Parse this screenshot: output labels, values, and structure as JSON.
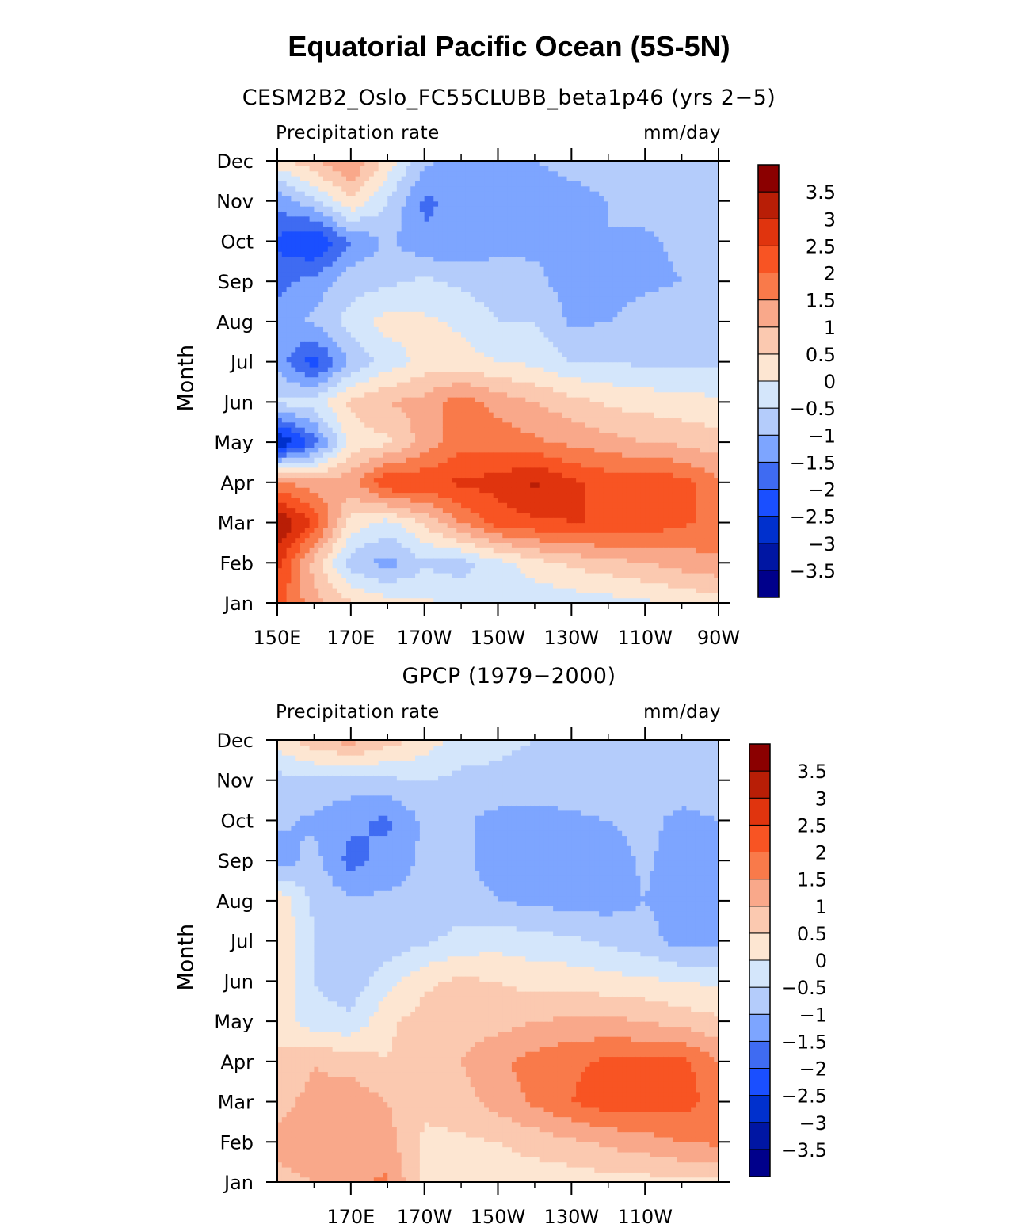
{
  "title": "Equatorial Pacific Ocean (5S-5N)",
  "colorbar": {
    "colors": [
      "#00008b",
      "#0016a3",
      "#0030cd",
      "#1a4fff",
      "#3f6bf2",
      "#7da5ff",
      "#b4ccfb",
      "#d4e6fb",
      "#fde6d2",
      "#fbc9b0",
      "#f9a88a",
      "#f97a4a",
      "#f85423",
      "#e0340e",
      "#b81e06",
      "#8b0000"
    ],
    "labels": [
      "3.5",
      "3",
      "2.5",
      "2",
      "1.5",
      "1",
      "0.5",
      "0",
      "−0.5",
      "−1",
      "−1.5",
      "−2",
      "−2.5",
      "−3",
      "−3.5"
    ]
  },
  "chart_data": [
    {
      "type": "heatmap",
      "title": "CESM2B2_Oslo_FC55CLUBB_beta1p46 (yrs 2−5)",
      "variable": "Precipitation rate",
      "units": "mm/day",
      "ylabel": "Month",
      "xlim": [
        150,
        270
      ],
      "x_tick_labels": [
        "150E",
        "170E",
        "170W",
        "150W",
        "130W",
        "110W",
        "90W"
      ],
      "y_tick_labels": [
        "Jan",
        "Feb",
        "Mar",
        "Apr",
        "May",
        "Jun",
        "Jul",
        "Aug",
        "Sep",
        "Oct",
        "Nov",
        "Dec"
      ],
      "levels": [
        -3.5,
        -3,
        -2.5,
        -2,
        -1.5,
        -1,
        -0.5,
        0,
        0.5,
        1,
        1.5,
        2,
        2.5,
        3,
        3.5
      ],
      "x": [
        150,
        160,
        170,
        180,
        190,
        200,
        210,
        220,
        230,
        240,
        250,
        260,
        270
      ],
      "y": [
        "Jan",
        "Feb",
        "Mar",
        "Apr",
        "May",
        "Jun",
        "Jul",
        "Aug",
        "Sep",
        "Oct",
        "Nov",
        "Dec"
      ],
      "z": [
        [
          2.2,
          1.2,
          0.6,
          0.2,
          0.1,
          -0.2,
          -0.3,
          -0.4,
          -0.3,
          -0.2,
          -0.1,
          0.1,
          0.2
        ],
        [
          2.7,
          0.8,
          -0.8,
          -1.2,
          -0.6,
          -0.7,
          -0.2,
          0.3,
          0.6,
          0.8,
          1.0,
          1.2,
          1.4
        ],
        [
          3.6,
          2.4,
          0.3,
          -0.2,
          0.6,
          1.5,
          2.2,
          2.4,
          2.5,
          2.5,
          2.3,
          2.1,
          1.8
        ],
        [
          1.6,
          1.2,
          1.3,
          2.5,
          2.4,
          2.6,
          2.7,
          3.1,
          2.6,
          2.3,
          2.4,
          2.2,
          1.6
        ],
        [
          -3.2,
          -1.8,
          0.2,
          0.4,
          1.2,
          1.8,
          1.8,
          1.6,
          1.4,
          1.2,
          1.0,
          0.9,
          0.7
        ],
        [
          -0.4,
          -0.2,
          0.6,
          1.0,
          1.2,
          1.8,
          1.3,
          1.0,
          0.7,
          0.4,
          0.3,
          0.2,
          0.1
        ],
        [
          -1.2,
          -2.3,
          -0.9,
          -0.3,
          0.2,
          0.2,
          0.0,
          -0.1,
          -0.5,
          -0.5,
          -0.6,
          -0.6,
          -0.6
        ],
        [
          -1.2,
          -0.9,
          -0.3,
          0.2,
          0.1,
          -0.1,
          -0.5,
          -0.5,
          -1.1,
          -1.0,
          -0.8,
          -0.7,
          -0.6
        ],
        [
          -1.7,
          -1.3,
          -0.7,
          -0.6,
          -0.4,
          -0.6,
          -0.8,
          -0.9,
          -1.2,
          -1.2,
          -1.1,
          -1.0,
          -0.9
        ],
        [
          -2.1,
          -2.6,
          -1.5,
          -0.9,
          -1.4,
          -1.5,
          -1.1,
          -1.1,
          -1.0,
          -1.0,
          -1.1,
          -0.9,
          -0.8
        ],
        [
          -1.4,
          -0.6,
          0.4,
          -0.5,
          -1.6,
          -1.3,
          -1.3,
          -1.2,
          -1.1,
          -1.0,
          -0.8,
          -0.7,
          -0.6
        ],
        [
          0.3,
          0.9,
          1.6,
          0.3,
          -0.9,
          -1.2,
          -1.2,
          -1.0,
          -0.9,
          -0.9,
          -0.8,
          -0.7,
          -0.6
        ]
      ]
    },
    {
      "type": "heatmap",
      "title": "GPCP (1979−2000)",
      "variable": "Precipitation rate",
      "units": "mm/day",
      "ylabel": "Month",
      "xlim": [
        150,
        270
      ],
      "x_tick_labels": [
        "170E",
        "170W",
        "150W",
        "130W",
        "110W"
      ],
      "y_tick_labels": [
        "Jan",
        "Feb",
        "Mar",
        "Apr",
        "May",
        "Jun",
        "Jul",
        "Aug",
        "Sep",
        "Oct",
        "Nov",
        "Dec"
      ],
      "levels": [
        -3.5,
        -3,
        -2.5,
        -2,
        -1.5,
        -1,
        -0.5,
        0,
        0.5,
        1,
        1.5,
        2,
        2.5,
        3,
        3.5
      ],
      "x": [
        150,
        160,
        170,
        180,
        190,
        200,
        210,
        220,
        230,
        240,
        250,
        260,
        270
      ],
      "y": [
        "Jan",
        "Feb",
        "Mar",
        "Apr",
        "May",
        "Jun",
        "Jul",
        "Aug",
        "Sep",
        "Oct",
        "Nov",
        "Dec"
      ],
      "z": [
        [
          0.9,
          1.0,
          1.4,
          1.6,
          0.3,
          0.2,
          0.2,
          0.2,
          0.2,
          0.3,
          0.3,
          0.4,
          0.4
        ],
        [
          1.1,
          1.2,
          1.3,
          1.2,
          0.4,
          0.4,
          0.5,
          0.7,
          0.9,
          1.1,
          1.3,
          1.5,
          1.6
        ],
        [
          0.9,
          1.1,
          1.3,
          1.0,
          0.6,
          0.8,
          1.2,
          1.6,
          2.0,
          2.3,
          2.2,
          2.2,
          1.8
        ],
        [
          0.6,
          1.0,
          0.8,
          0.5,
          0.8,
          1.0,
          1.4,
          1.7,
          1.9,
          2.1,
          2.1,
          2.2,
          1.5
        ],
        [
          0.3,
          -0.3,
          -0.4,
          0.4,
          0.7,
          0.8,
          0.8,
          1.0,
          1.1,
          1.1,
          1.0,
          0.8,
          0.6
        ],
        [
          0.4,
          -0.5,
          -0.8,
          -0.2,
          0.4,
          0.6,
          0.5,
          0.3,
          0.3,
          0.2,
          0.1,
          0.0,
          -0.1
        ],
        [
          0.5,
          -0.5,
          -0.8,
          -0.8,
          -0.6,
          -0.3,
          -0.2,
          -0.3,
          -0.4,
          -0.6,
          -0.8,
          -1.2,
          -1.1
        ],
        [
          0.4,
          -0.6,
          -0.9,
          -0.9,
          -0.8,
          -0.8,
          -1.0,
          -1.1,
          -1.2,
          -1.2,
          -1.0,
          -1.3,
          -1.0
        ],
        [
          -1.3,
          -0.8,
          -1.7,
          -1.3,
          -0.9,
          -0.9,
          -1.2,
          -1.3,
          -1.3,
          -1.3,
          -0.9,
          -1.3,
          -1.1
        ],
        [
          -0.9,
          -1.1,
          -1.4,
          -1.6,
          -0.9,
          -0.9,
          -1.2,
          -1.2,
          -1.1,
          -1.0,
          -0.8,
          -1.2,
          -1.0
        ],
        [
          -0.7,
          -0.6,
          -0.7,
          -0.6,
          -0.5,
          -0.6,
          -0.6,
          -0.7,
          -0.7,
          -0.7,
          -0.7,
          -0.6,
          -0.6
        ],
        [
          0.2,
          0.8,
          1.2,
          0.7,
          0.3,
          -0.3,
          -0.4,
          -0.5,
          -0.5,
          -0.6,
          -0.6,
          -0.6,
          -0.6
        ]
      ]
    }
  ]
}
